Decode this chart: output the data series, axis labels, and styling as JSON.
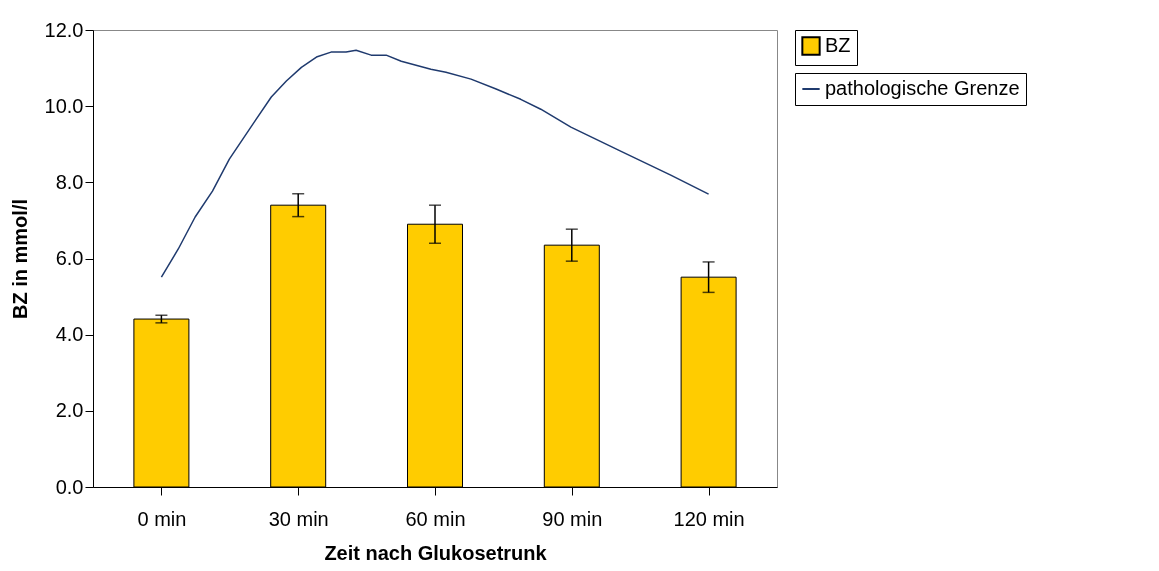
{
  "chart_data": {
    "type": "bar",
    "xlabel": "Zeit nach Glukosetrunk",
    "ylabel": "BZ in mmol/l",
    "x": [
      0,
      30,
      60,
      90,
      120
    ],
    "xlim": [
      -15,
      135
    ],
    "xticks": [
      {
        "value": 0,
        "label": "0 min"
      },
      {
        "value": 30,
        "label": "30 min"
      },
      {
        "value": 60,
        "label": "60 min"
      },
      {
        "value": 90,
        "label": "90 min"
      },
      {
        "value": 120,
        "label": "120 min"
      }
    ],
    "ylim": [
      0,
      12
    ],
    "yticks": [
      {
        "value": 0,
        "label": "0.0"
      },
      {
        "value": 2,
        "label": "2.0"
      },
      {
        "value": 4,
        "label": "4.0"
      },
      {
        "value": 6,
        "label": "6.0"
      },
      {
        "value": 8,
        "label": "8.0"
      },
      {
        "value": 10,
        "label": "10.0"
      },
      {
        "value": 12,
        "label": "12.0"
      }
    ],
    "grid": false,
    "legend": "right",
    "series": [
      {
        "name": "BZ",
        "color": "#ffcc00",
        "values": [
          4.41,
          7.4,
          6.9,
          6.35,
          5.51
        ],
        "errors": [
          0.1,
          0.3,
          0.5,
          0.42,
          0.4
        ]
      },
      {
        "name": "pathologische Grenze",
        "type": "line",
        "color": "#1f3a6e",
        "line_style": "solid",
        "marker": "none",
        "x": [
          0,
          3.7,
          7.4,
          11.2,
          14.9,
          20.8,
          24.1,
          27.4,
          30.7,
          34,
          37.2,
          40.5,
          42.7,
          46,
          49.3,
          52.6,
          59.1,
          62.4,
          67.9,
          73.4,
          78.8,
          83.2,
          89.8,
          100.7,
          111.7,
          120
        ],
        "values": [
          5.51,
          6.25,
          7.09,
          7.77,
          8.61,
          9.66,
          10.24,
          10.66,
          11.02,
          11.29,
          11.42,
          11.42,
          11.47,
          11.34,
          11.34,
          11.18,
          10.97,
          10.89,
          10.71,
          10.45,
          10.18,
          9.92,
          9.45,
          8.82,
          8.19,
          7.69
        ]
      }
    ]
  }
}
